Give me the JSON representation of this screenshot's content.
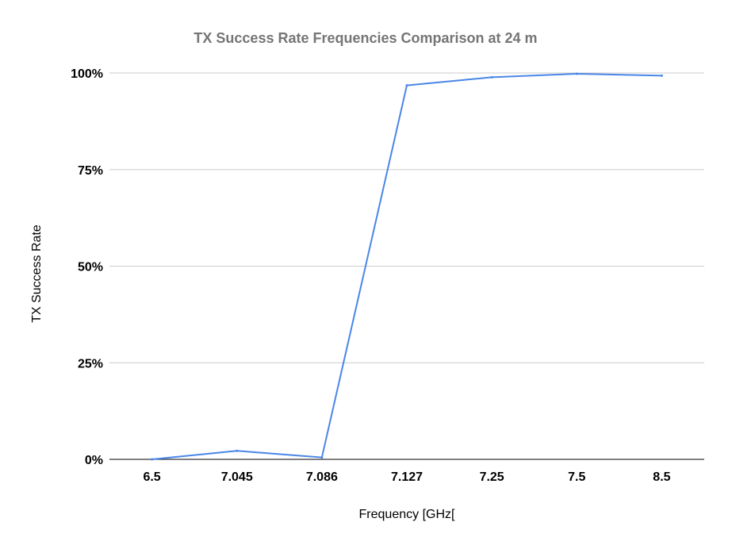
{
  "chart_data": {
    "type": "line",
    "title": "TX Success Rate Frequencies Comparison at 24 m",
    "xlabel": "Frequency [GHz[",
    "ylabel": "TX Success Rate",
    "categories": [
      "6.5",
      "7.045",
      "7.086",
      "7.127",
      "7.25",
      "7.5",
      "8.5"
    ],
    "series": [
      {
        "values": [
          0.0,
          2.2,
          0.5,
          96.8,
          98.9,
          99.8,
          99.3
        ]
      }
    ],
    "ylim": [
      0,
      100
    ],
    "yticks": [
      0,
      25,
      50,
      75,
      100
    ],
    "ytick_labels": [
      "0%",
      "25%",
      "50%",
      "75%",
      "100%"
    ],
    "grid": true,
    "legend": "none",
    "colors": {
      "line": "#4a86e8",
      "grid": "#cccccc",
      "axis": "#333333",
      "title": "#757575"
    }
  }
}
